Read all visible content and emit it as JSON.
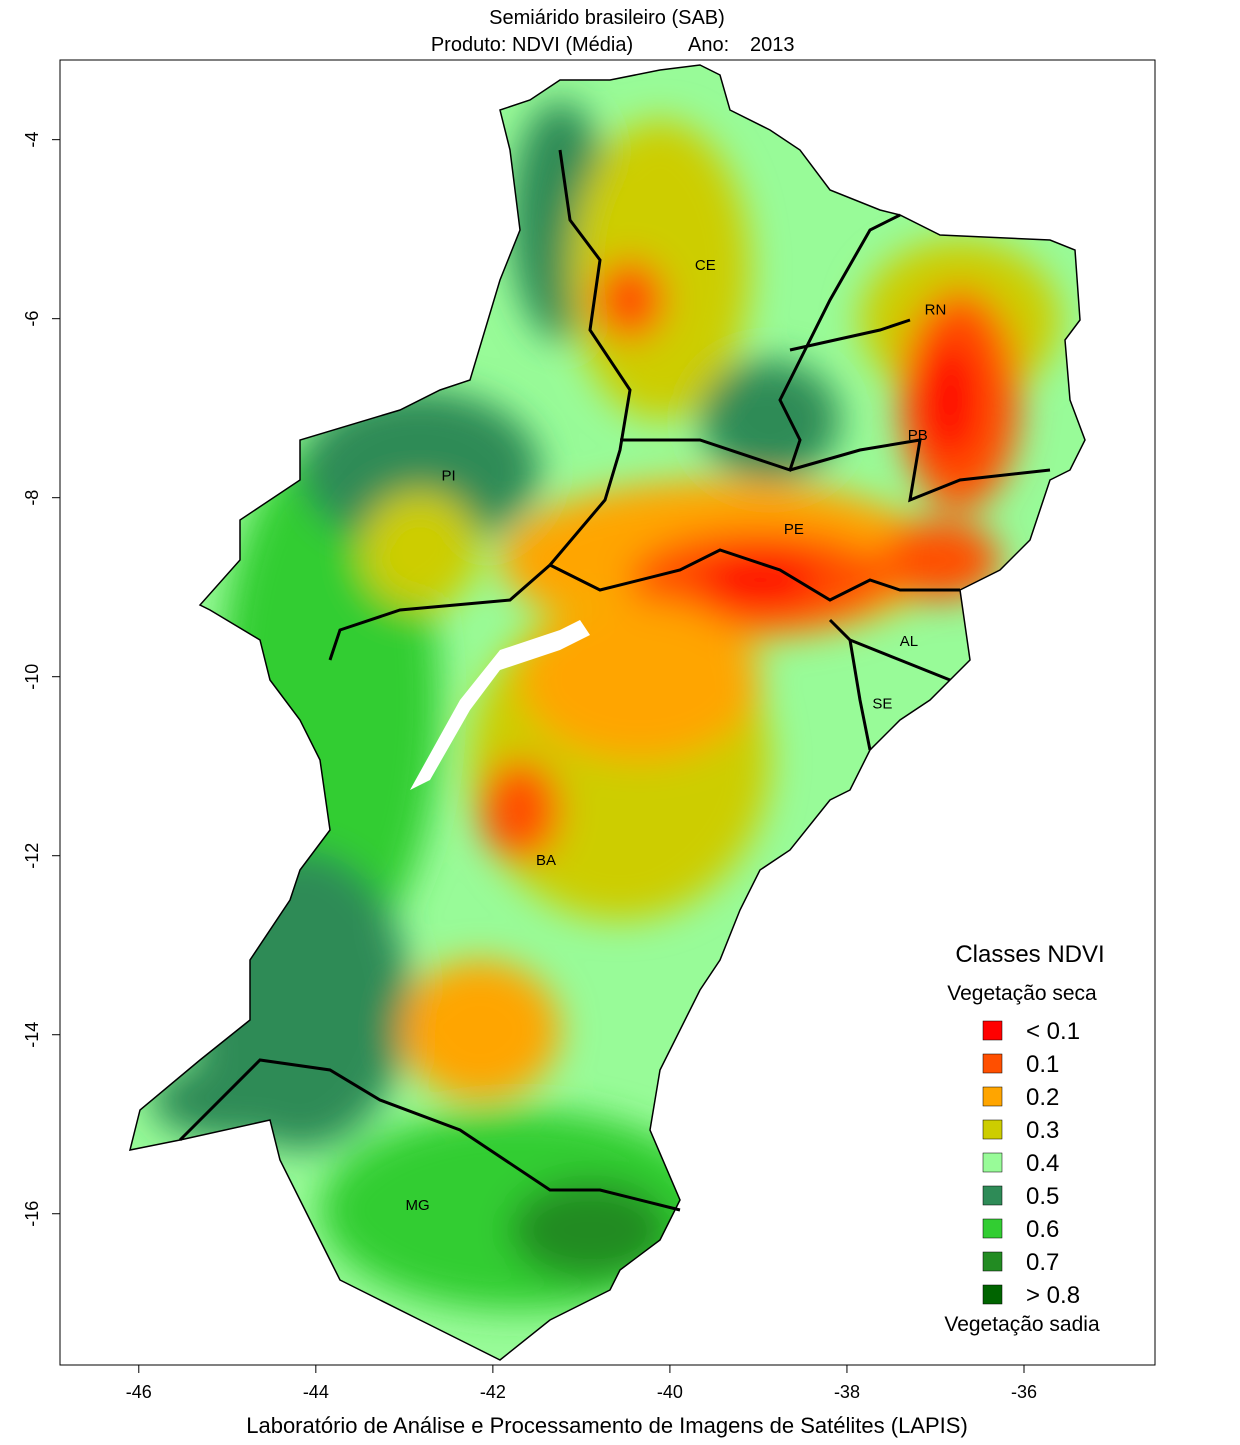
{
  "title": "Semiárido brasileiro (SAB)",
  "subtitle": {
    "product": "Produto: NDVI (Média)",
    "year_label": "Ano:",
    "year": "2013"
  },
  "axes": {
    "xlim": [
      -46.89,
      -34.52
    ],
    "ylim": [
      -17.69,
      -3.11
    ],
    "xticks": [
      -46,
      -44,
      -42,
      -40,
      -38,
      -36
    ],
    "yticks": [
      -4,
      -6,
      -8,
      -10,
      -12,
      -14,
      -16
    ]
  },
  "states": [
    {
      "label": "CE",
      "lon": -39.6,
      "lat": -5.4
    },
    {
      "label": "RN",
      "lon": -37.0,
      "lat": -5.9
    },
    {
      "label": "PB",
      "lon": -37.2,
      "lat": -7.3
    },
    {
      "label": "PI",
      "lon": -42.5,
      "lat": -7.75
    },
    {
      "label": "PE",
      "lon": -38.6,
      "lat": -8.35
    },
    {
      "label": "AL",
      "lon": -37.3,
      "lat": -9.6
    },
    {
      "label": "SE",
      "lon": -37.6,
      "lat": -10.3
    },
    {
      "label": "BA",
      "lon": -41.4,
      "lat": -12.05
    },
    {
      "label": "MG",
      "lon": -42.85,
      "lat": -15.9
    }
  ],
  "legend": {
    "title": "Classes NDVI",
    "top_label": "Vegetação seca",
    "bottom_label": "Vegetação sadia",
    "classes": [
      {
        "label": "< 0.1",
        "color": "#ff0000"
      },
      {
        "label": "0.1",
        "color": "#ff4f00"
      },
      {
        "label": "0.2",
        "color": "#ffa500"
      },
      {
        "label": "0.3",
        "color": "#cdcd00"
      },
      {
        "label": "0.4",
        "color": "#98fb98"
      },
      {
        "label": "0.5",
        "color": "#2e8b57"
      },
      {
        "label": "0.6",
        "color": "#32cd32"
      },
      {
        "label": "0.7",
        "color": "#228b22"
      },
      {
        "label": "> 0.8",
        "color": "#006400"
      }
    ]
  },
  "footer": "Laboratório de Análise e Processamento de Imagens de Satélites (LAPIS)"
}
